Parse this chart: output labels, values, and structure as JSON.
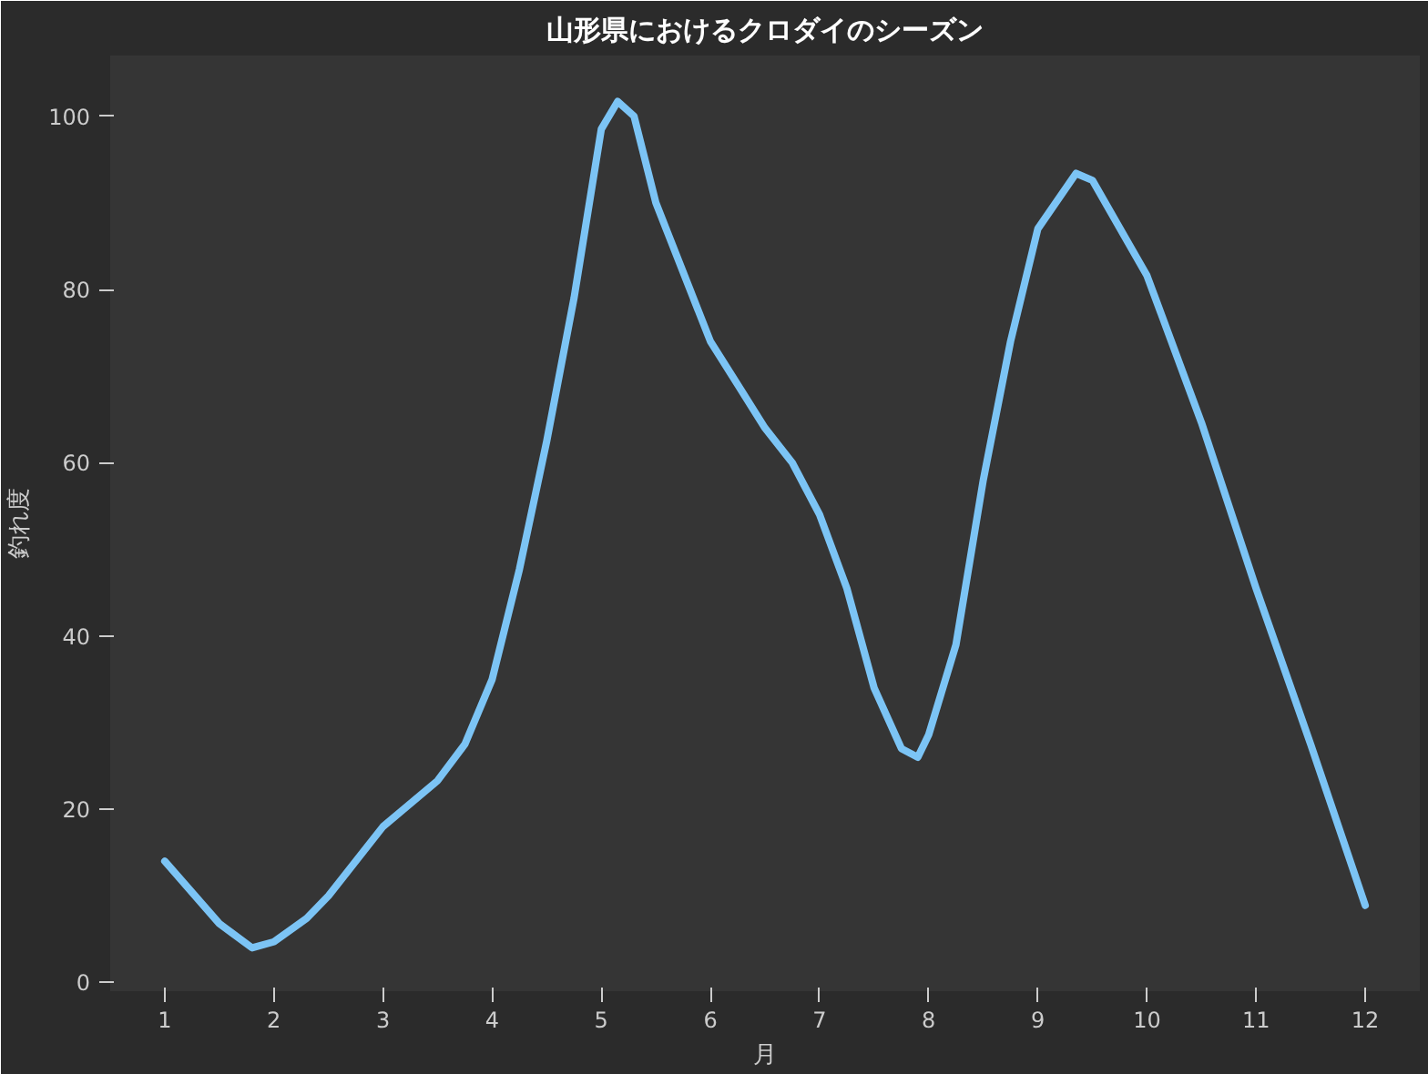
{
  "chart_data": {
    "type": "line",
    "title": "山形県におけるクロダイのシーズン",
    "xlabel": "月",
    "ylabel": "釣れ度",
    "xlim": [
      0.5,
      12.5
    ],
    "xticks": [
      1,
      2,
      3,
      4,
      5,
      6,
      7,
      8,
      9,
      10,
      11,
      12
    ],
    "ylim": [
      -1,
      107
    ],
    "yticks": [
      0,
      20,
      40,
      60,
      80,
      100
    ],
    "grid": false,
    "series": [
      {
        "color": "#7cc4f5",
        "x": [
          1,
          1.5,
          1.8,
          2,
          2.3,
          2.5,
          3,
          3.5,
          3.75,
          4,
          4.25,
          4.5,
          4.75,
          5,
          5.15,
          5.3,
          5.5,
          6,
          6.25,
          6.5,
          6.75,
          7,
          7.25,
          7.5,
          7.75,
          7.9,
          8,
          8.25,
          8.5,
          8.75,
          9,
          9.35,
          9.5,
          10,
          10.5,
          11,
          11.5,
          12
        ],
        "values": [
          14,
          6.8,
          4,
          4.7,
          7.4,
          10,
          18,
          23.3,
          27.5,
          35,
          47.7,
          62.5,
          79,
          98.5,
          101.7,
          100,
          90,
          74,
          69,
          64,
          60,
          54,
          45.5,
          34,
          27,
          26,
          28.6,
          39,
          58,
          74,
          87,
          93.4,
          92.6,
          81.6,
          64.6,
          45.5,
          27.5,
          8.9
        ]
      }
    ]
  }
}
